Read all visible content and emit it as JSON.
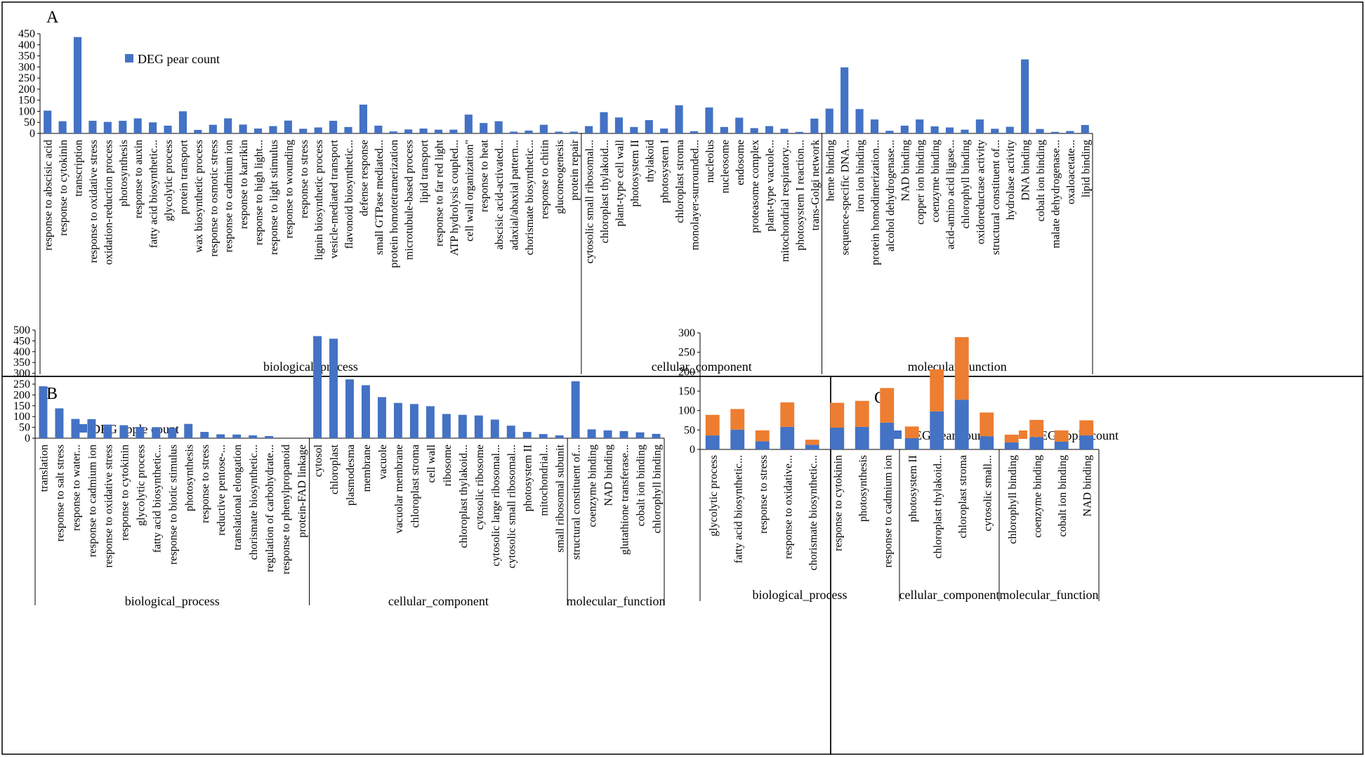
{
  "colors": {
    "pear": "#4472C4",
    "apple": "#ED7D31",
    "axis": "#000000",
    "frame": "#000000"
  },
  "chart_data": [
    {
      "panel": "A",
      "type": "bar",
      "legend": "DEG pear count",
      "ylim": [
        0,
        450
      ],
      "yticks": [
        0,
        50,
        100,
        150,
        200,
        250,
        300,
        350,
        400,
        450
      ],
      "groups": [
        {
          "name": "biological_process",
          "categories": [
            "response to abscisic acid",
            "response to cytokinin",
            "transcription",
            "response to oxidative stress",
            "oxidation-reduction process",
            "photosynthesis",
            "response to auxin",
            "fatty acid biosynthetic...",
            "glycolytic process",
            "protein transport",
            "wax biosynthetic process",
            "response to osmotic stress",
            "response to cadmium ion",
            "response to karrikin",
            "response to high light...",
            "response to light stimulus",
            "response to wounding",
            "response to stress",
            "lignin biosynthetic process",
            "vesicle-mediated transport",
            "flavonoid biosynthetic...",
            "defense response",
            "small GTPase mediated...",
            "protein homotetramerization",
            "microtubule-based process",
            "lipid transport",
            "response to far red light",
            "ATP hydrolysis coupled...",
            "cell wall organization\"",
            "response to heat",
            "abscisic acid-activated...",
            "adaxial/abaxial pattern...",
            "chorismate biosynthetic...",
            "response to chitin",
            "gluconeogenesis",
            "protein repair"
          ],
          "values": [
            103,
            55,
            435,
            57,
            52,
            57,
            68,
            50,
            35,
            100,
            16,
            39,
            68,
            40,
            22,
            33,
            58,
            21,
            27,
            57,
            29,
            130,
            35,
            9,
            18,
            22,
            17,
            17,
            85,
            47,
            55,
            8,
            13,
            39,
            8,
            8
          ]
        },
        {
          "name": "cellular_component",
          "categories": [
            "cytosolic small ribosomal...",
            "chloroplast thylakoid...",
            "plant-type cell wall",
            "photosystem II",
            "thylakoid",
            "photosystem I",
            "chloroplast stroma",
            "monolayer-surrounded...",
            "nucleolus",
            "nucleosome",
            "endosome",
            "proteasome complex",
            "plant-type vacuole...",
            "mitochondrial respiratory...",
            "photosystem I reaction...",
            "trans-Golgi network"
          ],
          "values": [
            33,
            96,
            72,
            29,
            60,
            22,
            127,
            10,
            117,
            29,
            71,
            24,
            33,
            21,
            7,
            67
          ]
        },
        {
          "name": "molecular_function",
          "categories": [
            "heme binding",
            "sequence-specific DNA...",
            "iron ion binding",
            "protein homodimerization...",
            "alcohol dehydrogenase...",
            "NAD binding",
            "copper ion binding",
            "coenzyme binding",
            "acid-amino acid ligase...",
            "chlorophyll binding",
            "oxidoreductase activity",
            "structural constituent of...",
            "hydrolase activity",
            "DNA binding",
            "cobalt ion binding",
            "malate dehydrogenase...",
            "oxaloacetate...",
            "lipid binding"
          ],
          "values": [
            112,
            298,
            110,
            63,
            12,
            35,
            63,
            32,
            27,
            17,
            63,
            21,
            30,
            334,
            20,
            7,
            11,
            38
          ]
        }
      ]
    },
    {
      "panel": "B",
      "type": "bar",
      "legend": "DEG apple count",
      "ylim": [
        0,
        500
      ],
      "yticks": [
        0,
        50,
        100,
        150,
        200,
        250,
        300,
        350,
        400,
        450,
        500
      ],
      "groups": [
        {
          "name": "biological_process",
          "categories": [
            "translation",
            "response to salt stress",
            "response to water...",
            "response to cadmium ion",
            "response to oxidative stress",
            "response to cytokinin",
            "glycolytic process",
            "fatty acid biosynthetic...",
            "response to biotic stimulus",
            "photosynthesis",
            "response to stress",
            "reductive pentose-...",
            "translational elongation",
            "chorismate biosynthetic...",
            "regulation of carbohydrate...",
            "response to phenylpropanoid",
            "protein-FAD linkage"
          ],
          "values": [
            240,
            138,
            89,
            88,
            63,
            60,
            52,
            51,
            47,
            66,
            29,
            18,
            17,
            13,
            10,
            0,
            0
          ]
        },
        {
          "name": "cellular_component",
          "categories": [
            "cytosol",
            "chloroplast",
            "plasmodesma",
            "membrane",
            "vacuole",
            "vacuolar membrane",
            "chloroplast stroma",
            "cell wall",
            "ribosome",
            "chloroplast thylakoid...",
            "cytosolic ribosome",
            "cytosolic large ribosomal...",
            "cytosolic small ribosomal...",
            "photosystem II",
            "mitochondrial...",
            "small ribosomal subunit"
          ],
          "values": [
            472,
            460,
            272,
            245,
            190,
            163,
            158,
            148,
            112,
            108,
            105,
            86,
            58,
            29,
            19,
            13
          ]
        },
        {
          "name": "molecular_function",
          "categories": [
            "structural constituent of...",
            "coenzyme binding",
            "NAD binding",
            "glutathione transferase...",
            "cobalt ion binding",
            "chlorophyll binding"
          ],
          "values": [
            263,
            41,
            36,
            33,
            27,
            20
          ]
        }
      ]
    },
    {
      "panel": "C",
      "type": "stacked-bar",
      "ylim": [
        0,
        300
      ],
      "yticks": [
        0,
        50,
        100,
        150,
        200,
        250,
        300
      ],
      "series_names": [
        "DEG pear count",
        "DEG apple count"
      ],
      "groups": [
        {
          "name": "biological_process",
          "categories": [
            "glycolytic process",
            "fatty acid biosynthetic...",
            "response to stress",
            "response to oxidative...",
            "chorismate biosynthetic...",
            "response to cytokinin",
            "photosynthesis",
            "response to cadmium ion"
          ],
          "pear": [
            36,
            51,
            21,
            58,
            12,
            56,
            58,
            69
          ],
          "apple": [
            53,
            53,
            28,
            63,
            13,
            64,
            67,
            89
          ]
        },
        {
          "name": "cellular_component",
          "categories": [
            "photosystem II",
            "chloroplast thylakoid...",
            "chloroplast stroma",
            "cytosolic small..."
          ],
          "pear": [
            29,
            98,
            128,
            34
          ],
          "apple": [
            30,
            108,
            161,
            61
          ]
        },
        {
          "name": "molecular_function",
          "categories": [
            "chlorophyll binding",
            "coenzyme binding",
            "cobalt ion binding",
            "NAD binding"
          ],
          "pear": [
            18,
            32,
            20,
            36
          ],
          "apple": [
            20,
            44,
            29,
            39
          ]
        }
      ]
    }
  ]
}
